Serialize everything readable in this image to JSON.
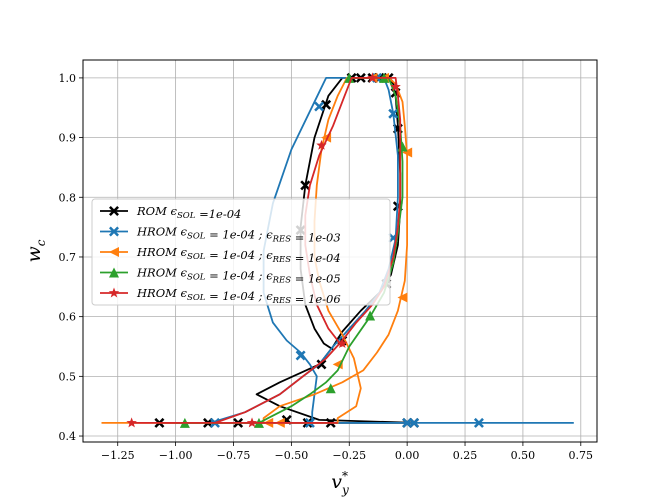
{
  "chart_data": {
    "type": "line",
    "xlabel": "v",
    "xlabel_sup": "*",
    "xlabel_sub": "y",
    "ylabel": "w",
    "ylabel_sub": "c",
    "xlim": [
      -1.4,
      0.82
    ],
    "ylim": [
      0.39,
      1.03
    ],
    "xticks": [
      -1.25,
      -1.0,
      -0.75,
      -0.5,
      -0.25,
      0.0,
      0.25,
      0.5,
      0.75
    ],
    "xtick_labels": [
      "−1.25",
      "−1.00",
      "−0.75",
      "−0.50",
      "−0.25",
      "0.00",
      "0.25",
      "0.50",
      "0.75"
    ],
    "yticks": [
      0.4,
      0.5,
      0.6,
      0.7,
      0.8,
      0.9,
      1.0
    ],
    "ytick_labels": [
      "0.4",
      "0.5",
      "0.6",
      "0.7",
      "0.8",
      "0.9",
      "1.0"
    ],
    "grid": true,
    "legend_position": "center-left",
    "series": [
      {
        "name_parts": [
          "ROM",
          " ϵ",
          "SOL",
          " =1e-04"
        ],
        "color": "#000000",
        "marker": "X",
        "points": [
          [
            -1.07,
            0.422
          ],
          [
            -0.9,
            0.422
          ],
          [
            -0.8,
            0.422
          ],
          [
            -0.7,
            0.422
          ],
          [
            -0.55,
            0.422
          ],
          [
            -0.45,
            0.422
          ],
          [
            -0.3,
            0.422
          ],
          [
            -0.2,
            0.422
          ],
          [
            -0.1,
            0.422
          ],
          [
            0.0,
            0.422
          ],
          [
            0.04,
            0.422
          ],
          [
            -0.38,
            0.427
          ],
          [
            -0.55,
            0.45
          ],
          [
            -0.65,
            0.47
          ],
          [
            -0.55,
            0.49
          ],
          [
            -0.38,
            0.52
          ],
          [
            -0.32,
            0.55
          ],
          [
            -0.28,
            0.575
          ],
          [
            -0.2,
            0.61
          ],
          [
            -0.12,
            0.64
          ],
          [
            -0.07,
            0.67
          ],
          [
            -0.04,
            0.72
          ],
          [
            -0.03,
            0.78
          ],
          [
            -0.03,
            0.84
          ],
          [
            -0.04,
            0.92
          ],
          [
            -0.05,
            0.97
          ],
          [
            -0.06,
            0.99
          ],
          [
            -0.08,
            1.0
          ],
          [
            -0.11,
            1.0
          ],
          [
            -0.15,
            1.0
          ],
          [
            -0.19,
            1.0
          ],
          [
            -0.23,
            1.0
          ],
          [
            -0.28,
            1.0
          ],
          [
            -0.34,
            0.97
          ],
          [
            -0.4,
            0.9
          ],
          [
            -0.44,
            0.82
          ],
          [
            -0.46,
            0.75
          ],
          [
            -0.46,
            0.68
          ],
          [
            -0.44,
            0.62
          ],
          [
            -0.4,
            0.58
          ],
          [
            -0.36,
            0.555
          ],
          [
            -0.32,
            0.545
          ]
        ],
        "markers": [
          [
            -1.07,
            0.422
          ],
          [
            -0.86,
            0.422
          ],
          [
            -0.73,
            0.422
          ],
          [
            -0.33,
            0.422
          ],
          [
            0.0,
            0.422
          ],
          [
            0.03,
            0.422
          ],
          [
            -0.52,
            0.427
          ],
          [
            -0.43,
            0.422
          ],
          [
            -0.37,
            0.52
          ],
          [
            -0.28,
            0.56
          ],
          [
            -0.09,
            0.655
          ],
          [
            -0.04,
            0.785
          ],
          [
            -0.04,
            0.915
          ],
          [
            -0.05,
            0.975
          ],
          [
            -0.08,
            1.0
          ],
          [
            -0.12,
            1.0
          ],
          [
            -0.15,
            1.0
          ],
          [
            -0.2,
            1.0
          ],
          [
            -0.24,
            1.0
          ],
          [
            -0.35,
            0.955
          ],
          [
            -0.44,
            0.82
          ],
          [
            -0.46,
            0.745
          ]
        ]
      },
      {
        "name_parts": [
          "HROM",
          " ϵ",
          "SOL",
          " = 1e-04 ; ϵ",
          "RES",
          " = 1e-03"
        ],
        "color": "#1f77b4",
        "marker": "X",
        "points": [
          [
            0.72,
            0.422
          ],
          [
            0.5,
            0.422
          ],
          [
            0.31,
            0.422
          ],
          [
            0.1,
            0.422
          ],
          [
            0.03,
            0.422
          ],
          [
            0.0,
            0.422
          ],
          [
            -0.1,
            0.422
          ],
          [
            -0.3,
            0.422
          ],
          [
            -0.4,
            0.422
          ],
          [
            -0.55,
            0.422
          ],
          [
            -0.75,
            0.422
          ],
          [
            -0.85,
            0.422
          ],
          [
            -0.7,
            0.44
          ],
          [
            -0.55,
            0.47
          ],
          [
            -0.45,
            0.5
          ],
          [
            -0.38,
            0.52
          ],
          [
            -0.32,
            0.55
          ],
          [
            -0.25,
            0.58
          ],
          [
            -0.18,
            0.61
          ],
          [
            -0.12,
            0.64
          ],
          [
            -0.08,
            0.68
          ],
          [
            -0.05,
            0.73
          ],
          [
            -0.04,
            0.8
          ],
          [
            -0.04,
            0.87
          ],
          [
            -0.06,
            0.94
          ],
          [
            -0.08,
            0.98
          ],
          [
            -0.1,
            1.0
          ],
          [
            -0.35,
            1.0
          ],
          [
            -0.4,
            0.96
          ],
          [
            -0.5,
            0.88
          ],
          [
            -0.58,
            0.79
          ],
          [
            -0.62,
            0.71
          ],
          [
            -0.62,
            0.64
          ],
          [
            -0.58,
            0.59
          ],
          [
            -0.52,
            0.56
          ],
          [
            -0.46,
            0.54
          ],
          [
            -0.42,
            0.52
          ],
          [
            -0.39,
            0.5
          ],
          [
            -0.4,
            0.47
          ],
          [
            -0.41,
            0.44
          ],
          [
            -0.41,
            0.422
          ]
        ],
        "markers": [
          [
            0.31,
            0.422
          ],
          [
            0.03,
            0.422
          ],
          [
            0.0,
            0.422
          ],
          [
            -0.42,
            0.422
          ],
          [
            -0.83,
            0.422
          ],
          [
            -0.06,
            0.732
          ],
          [
            -0.06,
            0.94
          ],
          [
            -0.38,
            0.952
          ],
          [
            -0.46,
            0.535
          ],
          [
            -0.13,
            1.0
          ]
        ]
      },
      {
        "name_parts": [
          "HROM",
          " ϵ",
          "SOL",
          " = 1e-04 ; ϵ",
          "RES",
          " = 1e-04"
        ],
        "color": "#ff7f0e",
        "marker": "<",
        "points": [
          [
            -1.32,
            0.422
          ],
          [
            -1.0,
            0.422
          ],
          [
            -0.8,
            0.422
          ],
          [
            -0.6,
            0.422
          ],
          [
            -0.4,
            0.422
          ],
          [
            -0.3,
            0.422
          ],
          [
            -0.3,
            0.43
          ],
          [
            -0.22,
            0.45
          ],
          [
            -0.2,
            0.48
          ],
          [
            -0.23,
            0.53
          ],
          [
            -0.28,
            0.57
          ],
          [
            -0.34,
            0.61
          ],
          [
            -0.38,
            0.66
          ],
          [
            -0.4,
            0.7
          ],
          [
            -0.4,
            0.76
          ],
          [
            -0.39,
            0.82
          ],
          [
            -0.37,
            0.88
          ],
          [
            -0.34,
            0.93
          ],
          [
            -0.3,
            0.97
          ],
          [
            -0.26,
            1.0
          ],
          [
            -0.2,
            1.0
          ],
          [
            -0.13,
            1.0
          ],
          [
            -0.08,
            1.0
          ],
          [
            -0.05,
            0.99
          ],
          [
            -0.02,
            0.96
          ],
          [
            -0.01,
            0.92
          ],
          [
            0.0,
            0.87
          ],
          [
            0.0,
            0.8
          ],
          [
            0.0,
            0.72
          ],
          [
            -0.01,
            0.66
          ],
          [
            -0.04,
            0.61
          ],
          [
            -0.08,
            0.57
          ],
          [
            -0.13,
            0.54
          ],
          [
            -0.19,
            0.51
          ],
          [
            -0.28,
            0.49
          ],
          [
            -0.4,
            0.47
          ],
          [
            -0.55,
            0.45
          ],
          [
            -0.62,
            0.43
          ],
          [
            -0.62,
            0.422
          ]
        ],
        "markers": [
          [
            -0.6,
            0.422
          ],
          [
            -0.55,
            0.422
          ],
          [
            -0.02,
            0.632
          ],
          [
            0.0,
            0.875
          ],
          [
            -0.35,
            0.9
          ],
          [
            -0.3,
            0.52
          ],
          [
            -0.15,
            1.0
          ],
          [
            -0.1,
            1.0
          ]
        ]
      },
      {
        "name_parts": [
          "HROM",
          " ϵ",
          "SOL",
          " = 1e-04 ; ϵ",
          "RES",
          " = 1e-05"
        ],
        "color": "#2ca02c",
        "marker": "^",
        "points": [
          [
            -1.0,
            0.422
          ],
          [
            -0.8,
            0.422
          ],
          [
            -0.64,
            0.422
          ],
          [
            -0.6,
            0.43
          ],
          [
            -0.5,
            0.45
          ],
          [
            -0.42,
            0.47
          ],
          [
            -0.35,
            0.49
          ],
          [
            -0.3,
            0.51
          ],
          [
            -0.25,
            0.55
          ],
          [
            -0.16,
            0.6
          ],
          [
            -0.1,
            0.64
          ],
          [
            -0.06,
            0.69
          ],
          [
            -0.04,
            0.74
          ],
          [
            -0.02,
            0.8
          ],
          [
            -0.02,
            0.86
          ],
          [
            -0.03,
            0.92
          ],
          [
            -0.05,
            0.97
          ],
          [
            -0.08,
            1.0
          ],
          [
            -0.12,
            1.0
          ],
          [
            -0.18,
            1.0
          ],
          [
            -0.25,
            1.0
          ]
        ],
        "markers": [
          [
            -0.96,
            0.422
          ],
          [
            -0.64,
            0.422
          ],
          [
            -0.33,
            0.48
          ],
          [
            -0.16,
            0.602
          ],
          [
            -0.02,
            0.885
          ],
          [
            -0.1,
            1.0
          ],
          [
            -0.25,
            1.0
          ]
        ]
      },
      {
        "name_parts": [
          "HROM",
          " ϵ",
          "SOL",
          " = 1e-04 ; ϵ",
          "RES",
          " = 1e-06"
        ],
        "color": "#d62728",
        "marker": "*",
        "points": [
          [
            -0.3,
            0.422
          ],
          [
            -0.5,
            0.422
          ],
          [
            -0.65,
            0.422
          ],
          [
            -0.85,
            0.422
          ],
          [
            -1.0,
            0.422
          ],
          [
            -1.19,
            0.422
          ],
          [
            -0.83,
            0.422
          ],
          [
            -0.7,
            0.44
          ],
          [
            -0.55,
            0.47
          ],
          [
            -0.45,
            0.5
          ],
          [
            -0.35,
            0.53
          ],
          [
            -0.28,
            0.56
          ],
          [
            -0.22,
            0.59
          ],
          [
            -0.15,
            0.62
          ],
          [
            -0.1,
            0.65
          ],
          [
            -0.06,
            0.7
          ],
          [
            -0.04,
            0.75
          ],
          [
            -0.03,
            0.8
          ],
          [
            -0.03,
            0.87
          ],
          [
            -0.03,
            0.93
          ],
          [
            -0.04,
            0.97
          ],
          [
            -0.05,
            1.0
          ],
          [
            -0.1,
            1.0
          ],
          [
            -0.18,
            1.0
          ],
          [
            -0.24,
            1.0
          ],
          [
            -0.27,
            0.97
          ],
          [
            -0.32,
            0.92
          ],
          [
            -0.38,
            0.87
          ],
          [
            -0.42,
            0.82
          ],
          [
            -0.44,
            0.77
          ],
          [
            -0.44,
            0.72
          ],
          [
            -0.42,
            0.67
          ],
          [
            -0.39,
            0.62
          ],
          [
            -0.34,
            0.58
          ],
          [
            -0.3,
            0.56
          ],
          [
            -0.28,
            0.55
          ]
        ],
        "markers": [
          [
            -1.19,
            0.422
          ],
          [
            -0.67,
            0.422
          ],
          [
            -0.37,
            0.887
          ],
          [
            -0.15,
            1.0
          ],
          [
            -0.05,
            0.985
          ],
          [
            -0.28,
            0.555
          ]
        ]
      }
    ]
  }
}
